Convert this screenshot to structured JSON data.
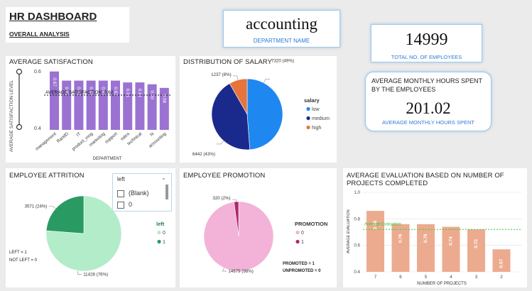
{
  "header": {
    "title": "HR DASHBOARD",
    "subtitle": "OVERALL ANALYSIS"
  },
  "department_card": {
    "value": "accounting",
    "label": "DEPARTMENT NAME"
  },
  "employees_card": {
    "value": "14999",
    "label": "TOTAL NO. OF EMPLOYEES"
  },
  "hours_card": {
    "title": "AVERAGE MONTHLY HOURS SPENT BY THE EMPLOYEES",
    "value": "201.02",
    "label": "AVERAGE MONTHLY HOURS SPENT"
  },
  "satisfaction": {
    "title": "AVERAGE SATISFACTION",
    "slider_label": "AVERAGE SATISFACTION LEVEL",
    "slider_max": "0.6",
    "slider_min": "0.4",
    "avg_line_label": "AVERAGE SATISFACTION: 0.62"
  },
  "salary": {
    "title": "DISTRIBUTION OF SALARY",
    "legend_title": "salary"
  },
  "attrition": {
    "title": "EMPLOYEE ATTRITION",
    "legend_title": "left",
    "note1": "LEFT = 1",
    "note2": "NOT LEFT = 0",
    "slicer": {
      "title": "left",
      "options": [
        "(Blank)",
        "0"
      ]
    }
  },
  "promotion": {
    "title": "EMPLOYEE PROMOTION",
    "legend_title": "PROMOTION",
    "note1": "PROMOTED = 1",
    "note2": "UNPROMOTED = 0"
  },
  "evaluation": {
    "title": "AVERAGE EVALUATION BASED ON NUMBER OF PROJECTS COMPLETED"
  },
  "colors": {
    "bar_purple": "#9b72d2",
    "salary_low": "#1e88f0",
    "salary_medium": "#1a2a8c",
    "salary_high": "#e5743d",
    "attr_0": "#b3ecc9",
    "attr_1": "#2a9a63",
    "promo_0": "#f3b2d8",
    "promo_1": "#b0266c",
    "eval_bar": "#ecab8f",
    "avg_green": "#3cc83c",
    "accent_blue": "#2b7bd8"
  },
  "chart_data": [
    {
      "type": "bar",
      "id": "satisfaction",
      "categories": [
        "management",
        "RandD",
        "IT",
        "product_mng",
        "marketing",
        "support",
        "sales",
        "technical",
        "hi",
        "accounting"
      ],
      "values": [
        0.67,
        0.62,
        0.62,
        0.62,
        0.62,
        0.62,
        0.61,
        0.61,
        0.6,
        0.58
      ],
      "data_labels": [
        "0.67",
        "0.62",
        "0.62",
        "0.62",
        "0.62",
        "0.62",
        "0.61",
        "0.61",
        "0.60",
        "0.58"
      ],
      "ylim": [
        0.4,
        0.6
      ],
      "yticks": [
        "0.4",
        "0.5",
        "0.6"
      ],
      "xlabel": "DEPARTMENT",
      "ylabel": "",
      "reference_line": 0.62
    },
    {
      "type": "pie",
      "id": "salary",
      "labels": [
        "low",
        "medium",
        "high"
      ],
      "values": [
        7320,
        6442,
        1237
      ],
      "data_labels": [
        "7320 (49%)",
        "6442 (43%)",
        "1237 (8%)"
      ]
    },
    {
      "type": "pie",
      "id": "attrition",
      "labels": [
        "0",
        "1"
      ],
      "values": [
        11428,
        3571
      ],
      "data_labels": [
        "11428 (76%)",
        "3571 (24%)"
      ]
    },
    {
      "type": "pie",
      "id": "promotion",
      "labels": [
        "0",
        "1"
      ],
      "values": [
        14679,
        320
      ],
      "data_labels": [
        "14679 (98%)",
        "320 (2%)"
      ]
    },
    {
      "type": "bar",
      "id": "evaluation",
      "categories": [
        "7",
        "6",
        "5",
        "4",
        "3",
        "2"
      ],
      "values": [
        0.86,
        0.76,
        0.76,
        0.74,
        0.72,
        0.57
      ],
      "data_labels": [
        "0.86",
        "0.76",
        "0.76",
        "0.74",
        "0.72",
        "0.57"
      ],
      "ylim": [
        0.4,
        1.0
      ],
      "yticks": [
        "0.4",
        "0.6",
        "0.8",
        "1.0"
      ],
      "xlabel": "NUMBER OF PROJECTS",
      "ylabel": "AVERAGE EVALUATION",
      "reference_line": 0.72,
      "reference_label": "Average Evaluation"
    }
  ]
}
